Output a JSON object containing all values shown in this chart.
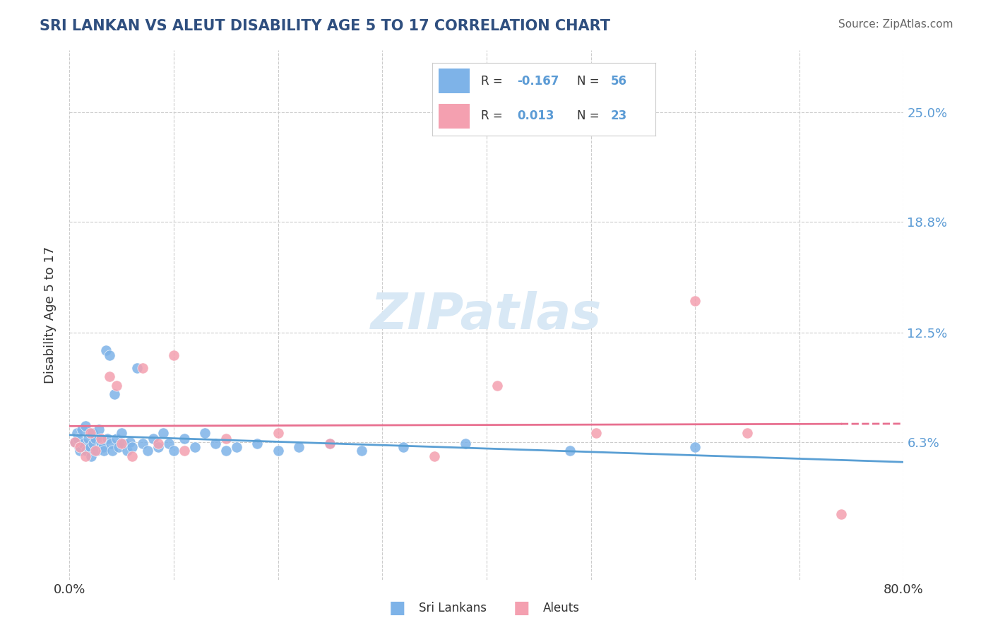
{
  "title": "SRI LANKAN VS ALEUT DISABILITY AGE 5 TO 17 CORRELATION CHART",
  "source": "Source: ZipAtlas.com",
  "ylabel": "Disability Age 5 to 17",
  "xlim": [
    0.0,
    0.8
  ],
  "ylim": [
    -0.015,
    0.285
  ],
  "yticks": [
    0.063,
    0.125,
    0.188,
    0.25
  ],
  "ytick_labels": [
    "6.3%",
    "12.5%",
    "18.8%",
    "25.0%"
  ],
  "xticks": [
    0.0,
    0.1,
    0.2,
    0.3,
    0.4,
    0.5,
    0.6,
    0.7,
    0.8
  ],
  "xtick_labels": [
    "0.0%",
    "",
    "",
    "",
    "",
    "",
    "",
    "",
    "80.0%"
  ],
  "color_sri": "#7EB3E8",
  "color_aleut": "#F4A0B0",
  "color_sri_line": "#5A9FD4",
  "color_aleut_line": "#E87090",
  "background_color": "#FFFFFF",
  "grid_color": "#CCCCCC",
  "watermark_color": "#D8E8F5",
  "title_color": "#2F4F7F",
  "source_color": "#666666",
  "tick_label_color": "#5B9BD5",
  "sri_x": [
    0.005,
    0.007,
    0.008,
    0.009,
    0.01,
    0.012,
    0.013,
    0.015,
    0.016,
    0.018,
    0.02,
    0.021,
    0.022,
    0.023,
    0.025,
    0.026,
    0.028,
    0.03,
    0.032,
    0.033,
    0.035,
    0.036,
    0.038,
    0.04,
    0.041,
    0.043,
    0.045,
    0.047,
    0.05,
    0.052,
    0.055,
    0.058,
    0.06,
    0.065,
    0.07,
    0.075,
    0.08,
    0.085,
    0.09,
    0.095,
    0.1,
    0.11,
    0.12,
    0.13,
    0.14,
    0.15,
    0.16,
    0.18,
    0.2,
    0.22,
    0.25,
    0.28,
    0.32,
    0.38,
    0.48,
    0.6
  ],
  "sri_y": [
    0.063,
    0.068,
    0.065,
    0.06,
    0.058,
    0.07,
    0.062,
    0.072,
    0.058,
    0.065,
    0.06,
    0.055,
    0.068,
    0.062,
    0.065,
    0.058,
    0.07,
    0.063,
    0.06,
    0.058,
    0.115,
    0.065,
    0.112,
    0.062,
    0.058,
    0.09,
    0.065,
    0.06,
    0.068,
    0.062,
    0.058,
    0.063,
    0.06,
    0.105,
    0.062,
    0.058,
    0.065,
    0.06,
    0.068,
    0.062,
    0.058,
    0.065,
    0.06,
    0.068,
    0.062,
    0.058,
    0.06,
    0.062,
    0.058,
    0.06,
    0.062,
    0.058,
    0.06,
    0.062,
    0.058,
    0.06
  ],
  "aleut_x": [
    0.005,
    0.01,
    0.015,
    0.02,
    0.025,
    0.03,
    0.038,
    0.045,
    0.05,
    0.06,
    0.07,
    0.085,
    0.1,
    0.11,
    0.15,
    0.2,
    0.25,
    0.35,
    0.41,
    0.505,
    0.6,
    0.65,
    0.74
  ],
  "aleut_y": [
    0.063,
    0.06,
    0.055,
    0.068,
    0.058,
    0.065,
    0.1,
    0.095,
    0.062,
    0.055,
    0.105,
    0.062,
    0.112,
    0.058,
    0.065,
    0.068,
    0.062,
    0.055,
    0.095,
    0.068,
    0.143,
    0.068,
    0.022
  ]
}
